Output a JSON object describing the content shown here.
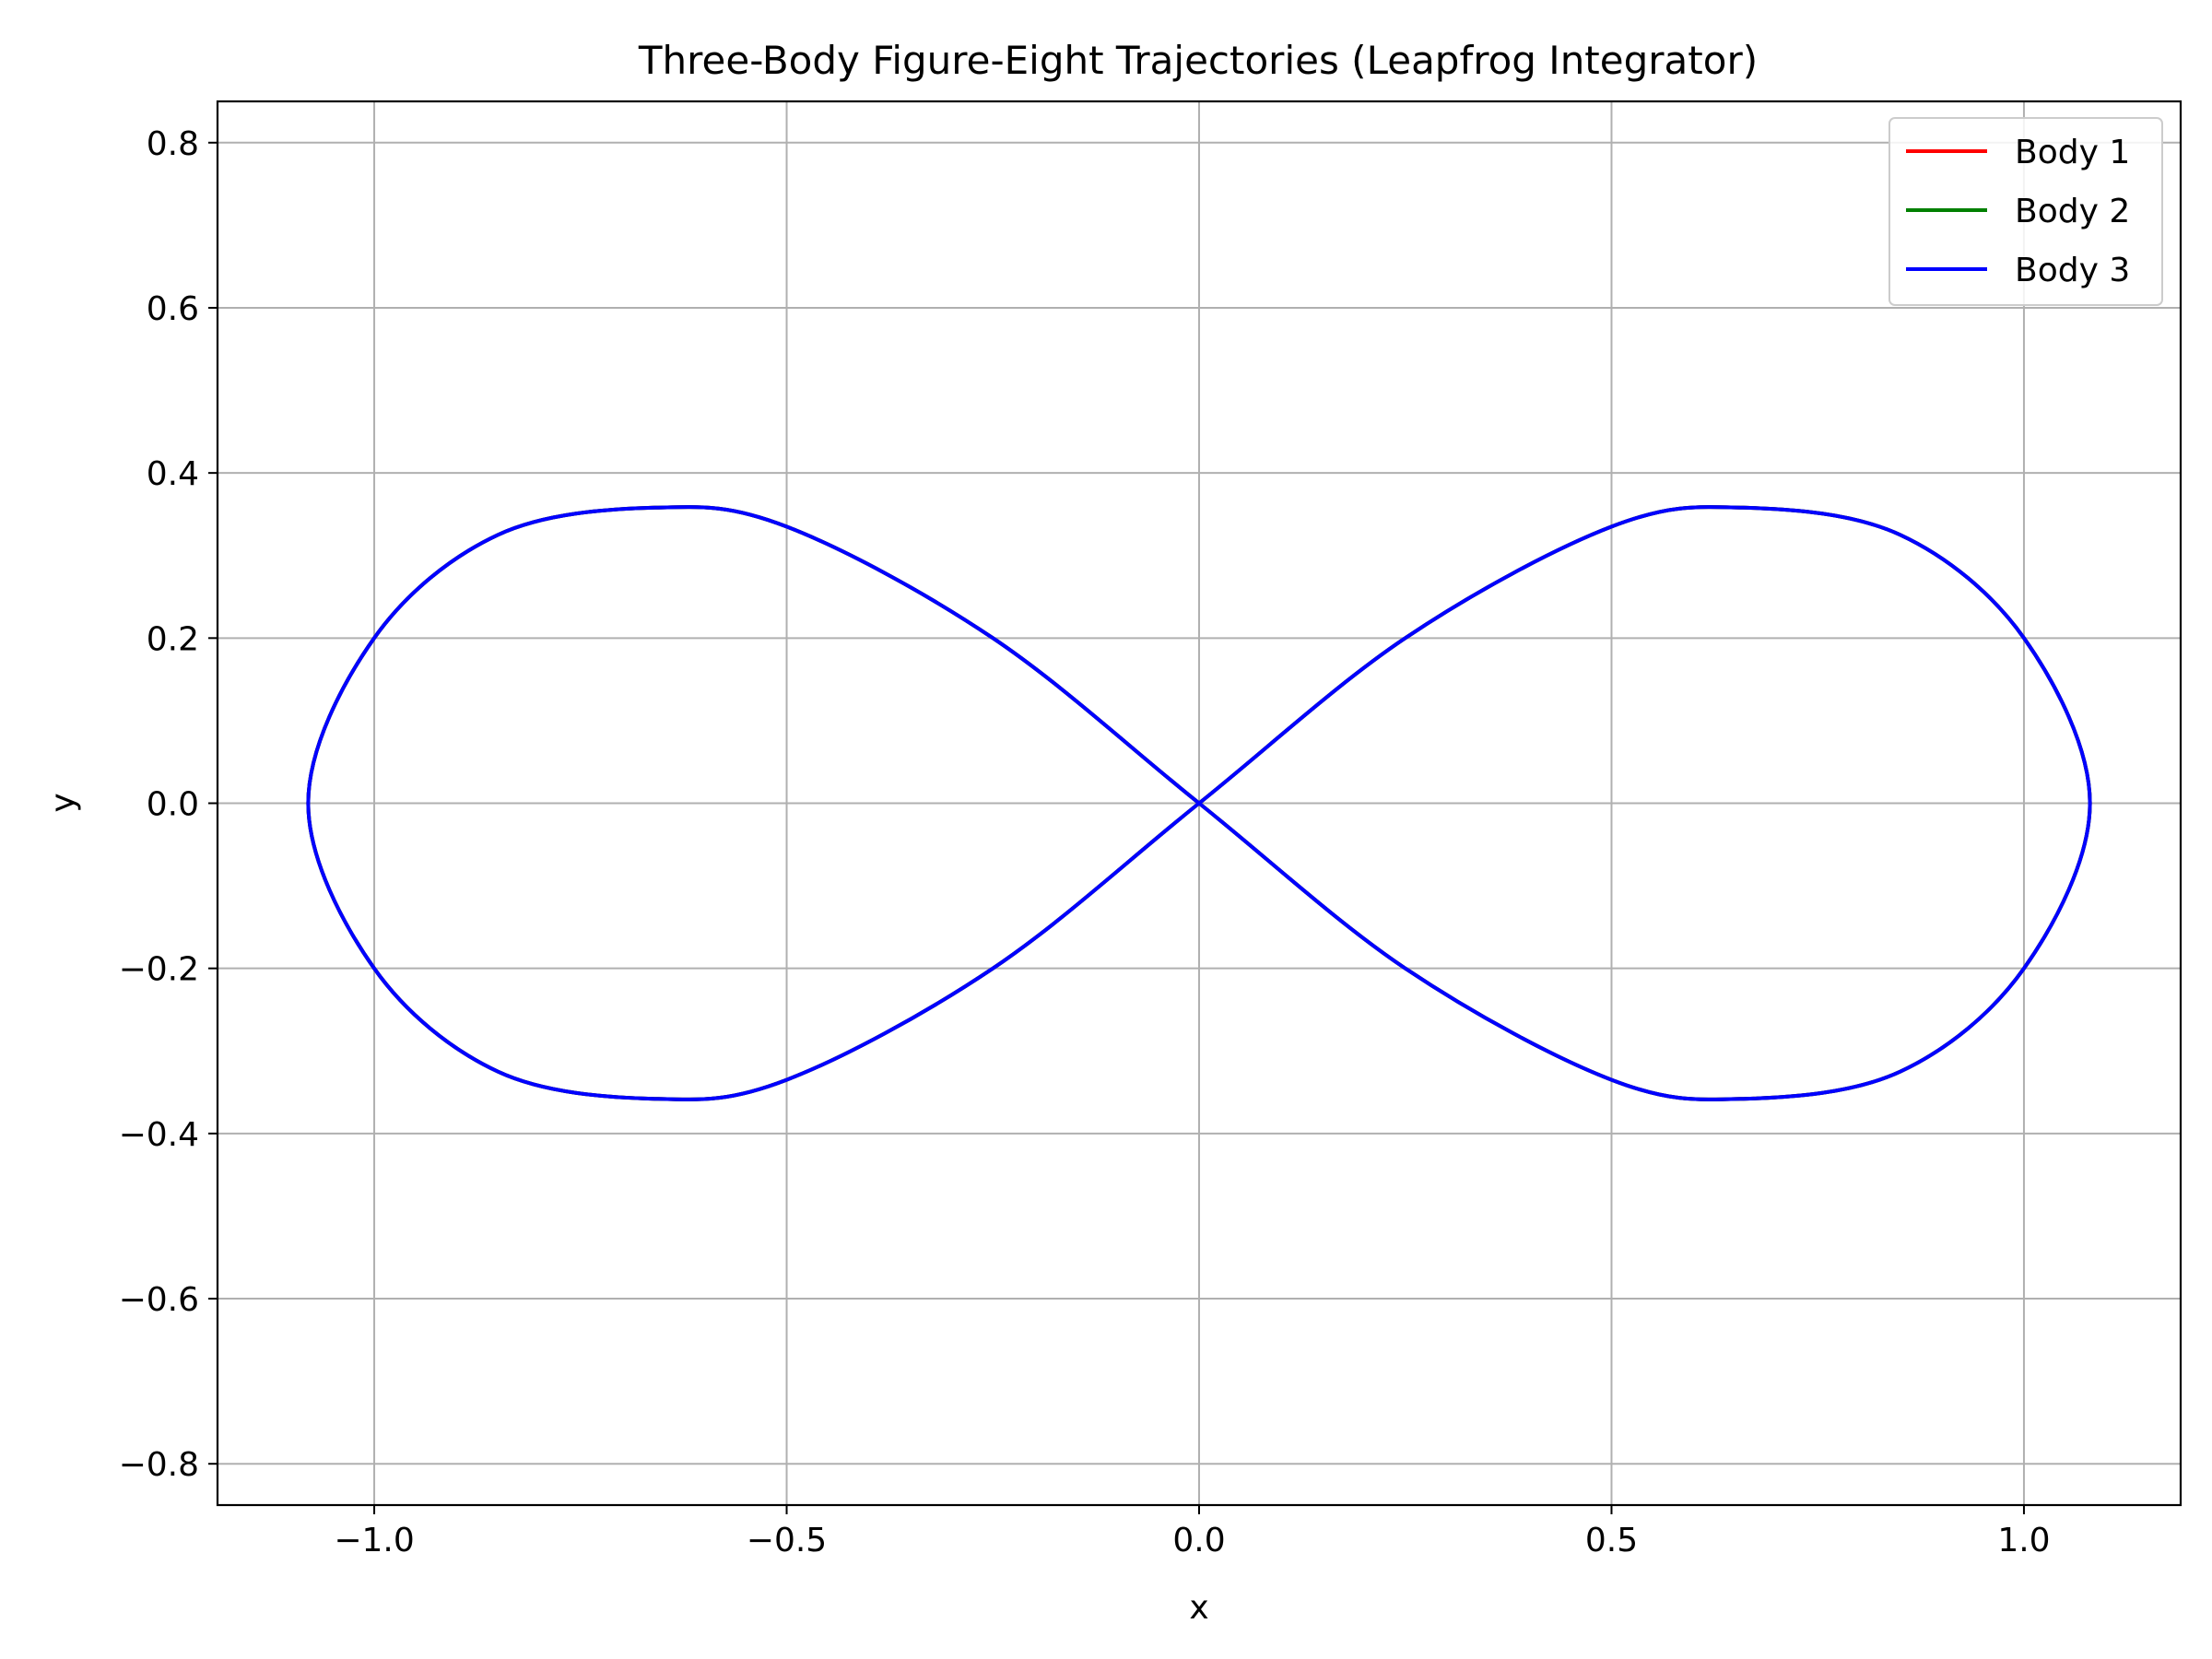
{
  "chart_data": {
    "type": "line",
    "title": "Three-Body Figure-Eight Trajectories (Leapfrog Integrator)",
    "xlabel": "x",
    "ylabel": "y",
    "xlim": [
      -1.19,
      1.19
    ],
    "ylim": [
      -0.85,
      0.85
    ],
    "x_ticks": [
      -1.0,
      -0.5,
      0.0,
      0.5,
      1.0
    ],
    "x_tick_labels": [
      "−1.0",
      "−0.5",
      "0.0",
      "0.5",
      "1.0"
    ],
    "y_ticks": [
      0.8,
      0.6,
      0.4,
      0.2,
      0.0,
      -0.2,
      -0.4,
      -0.6,
      -0.8
    ],
    "y_tick_labels": [
      "0.8",
      "0.6",
      "0.4",
      "0.2",
      "0.0",
      "−0.2",
      "−0.4",
      "−0.6",
      "−0.8"
    ],
    "grid": true,
    "legend_position": "top-right",
    "series": [
      {
        "name": "Body 1",
        "color": "#ff0000",
        "x": [
          0.0,
          0.25,
          0.5,
          0.66,
          0.85,
          1.0,
          1.08,
          1.0,
          0.85,
          0.66,
          0.5,
          0.25,
          0.0,
          -0.25,
          -0.5,
          -0.66,
          -0.85,
          -1.0,
          -1.08,
          -1.0,
          -0.85,
          -0.66,
          -0.5,
          -0.25,
          0.0
        ],
        "y": [
          0.0,
          0.2,
          0.335,
          0.358,
          0.325,
          0.2,
          0.0,
          -0.2,
          -0.325,
          -0.358,
          -0.335,
          -0.2,
          0.0,
          0.2,
          0.335,
          0.358,
          0.325,
          0.2,
          0.0,
          -0.2,
          -0.325,
          -0.358,
          -0.335,
          -0.2,
          0.0
        ]
      },
      {
        "name": "Body 2",
        "color": "#008000",
        "x": [
          0.0,
          0.25,
          0.5,
          0.66,
          0.85,
          1.0,
          1.08,
          1.0,
          0.85,
          0.66,
          0.5,
          0.25,
          0.0,
          -0.25,
          -0.5,
          -0.66,
          -0.85,
          -1.0,
          -1.08,
          -1.0,
          -0.85,
          -0.66,
          -0.5,
          -0.25,
          0.0
        ],
        "y": [
          0.0,
          0.2,
          0.335,
          0.358,
          0.325,
          0.2,
          0.0,
          -0.2,
          -0.325,
          -0.358,
          -0.335,
          -0.2,
          0.0,
          0.2,
          0.335,
          0.358,
          0.325,
          0.2,
          0.0,
          -0.2,
          -0.325,
          -0.358,
          -0.335,
          -0.2,
          0.0
        ]
      },
      {
        "name": "Body 3",
        "color": "#0000ff",
        "x": [
          0.0,
          0.25,
          0.5,
          0.66,
          0.85,
          1.0,
          1.08,
          1.0,
          0.85,
          0.66,
          0.5,
          0.25,
          0.0,
          -0.25,
          -0.5,
          -0.66,
          -0.85,
          -1.0,
          -1.08,
          -1.0,
          -0.85,
          -0.66,
          -0.5,
          -0.25,
          0.0
        ],
        "y": [
          0.0,
          0.2,
          0.335,
          0.358,
          0.325,
          0.2,
          0.0,
          -0.2,
          -0.325,
          -0.358,
          -0.335,
          -0.2,
          0.0,
          0.2,
          0.335,
          0.358,
          0.325,
          0.2,
          0.0,
          -0.2,
          -0.325,
          -0.358,
          -0.335,
          -0.2,
          0.0
        ]
      }
    ]
  }
}
